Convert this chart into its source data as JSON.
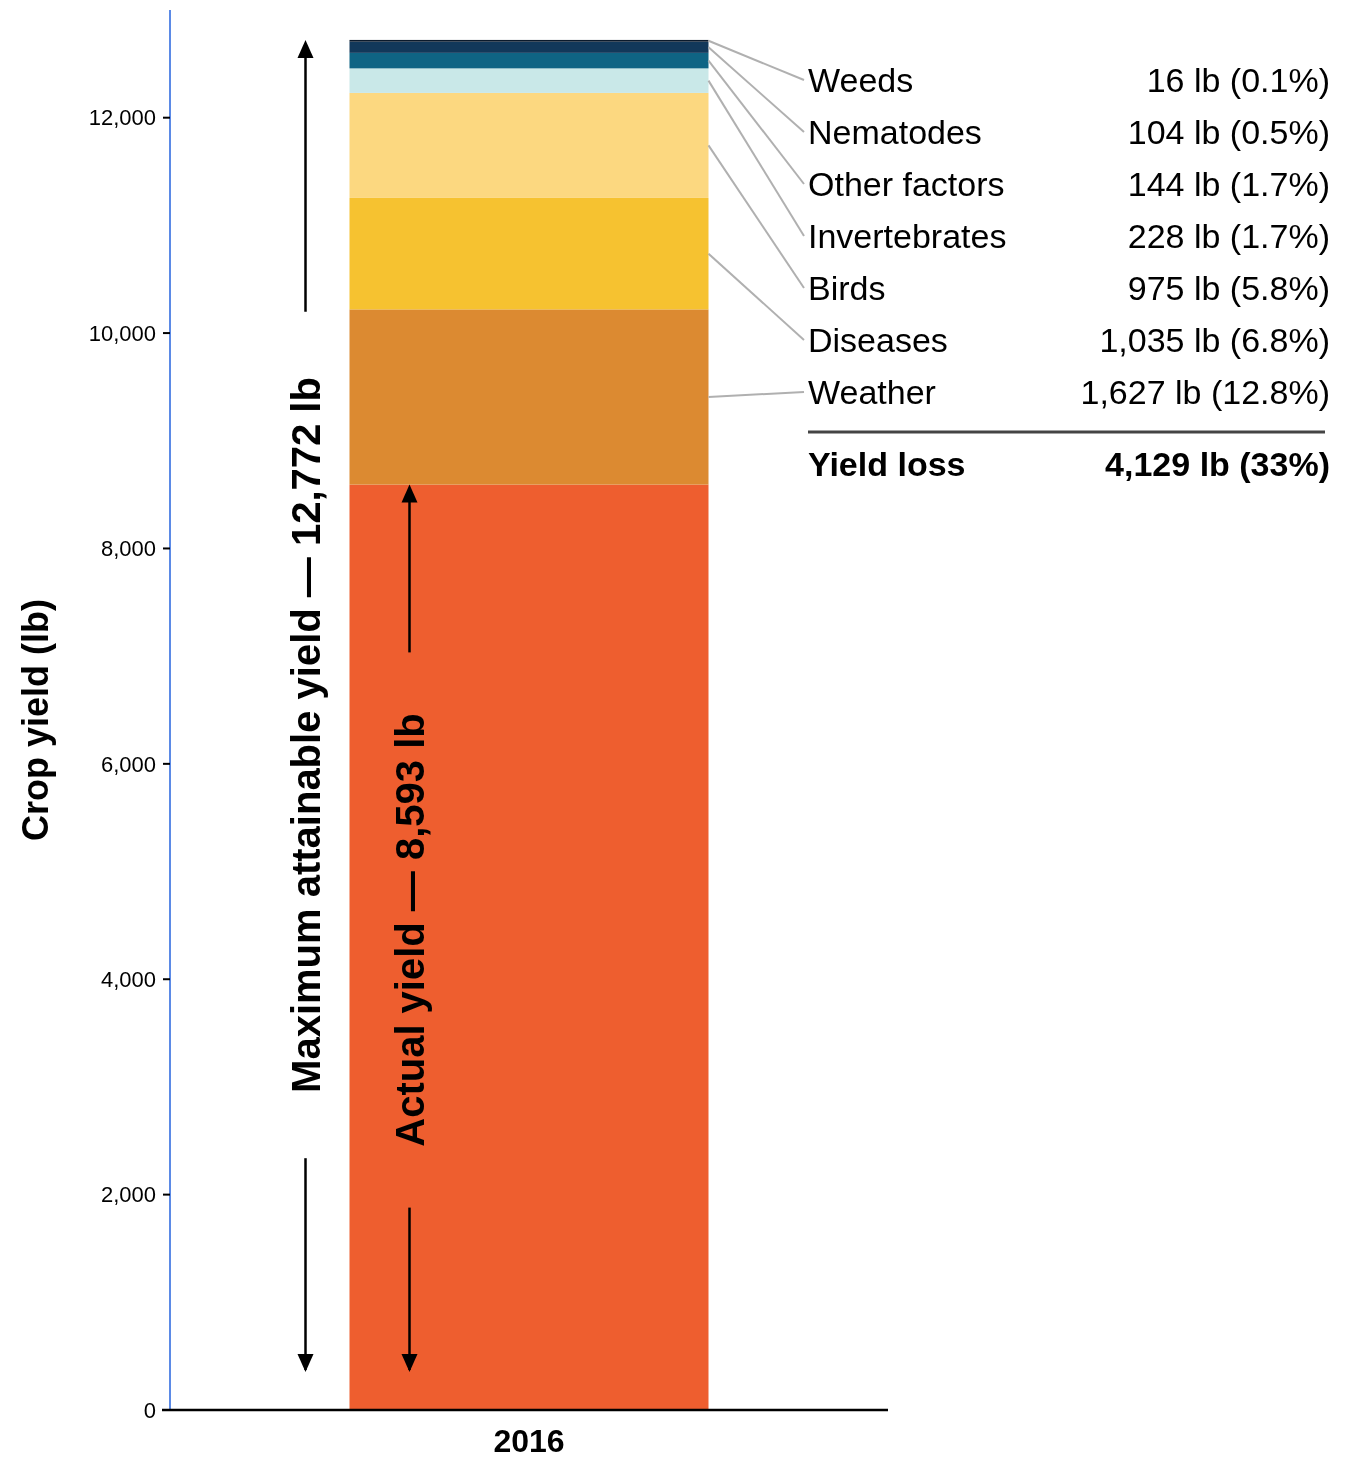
{
  "chart_data": {
    "type": "bar",
    "stacked": true,
    "categories": [
      "2016"
    ],
    "ylabel": "Crop yield (lb)",
    "ylim": [
      0,
      13000
    ],
    "yticks": [
      {
        "value": 0,
        "label": "0"
      },
      {
        "value": 2000,
        "label": "2,000"
      },
      {
        "value": 4000,
        "label": "4,000"
      },
      {
        "value": 6000,
        "label": "6,000"
      },
      {
        "value": 8000,
        "label": "8,000"
      },
      {
        "value": 10000,
        "label": "10,000"
      },
      {
        "value": 12000,
        "label": "12,000"
      }
    ],
    "grid": false,
    "legend": "right",
    "series": [
      {
        "color": "#ee5e2f",
        "values": [
          8593
        ]
      },
      {
        "name": "Weather",
        "color": "#dc8a31",
        "values": [
          1627
        ]
      },
      {
        "name": "Diseases",
        "color": "#f6c230",
        "values": [
          1035
        ]
      },
      {
        "name": "Birds",
        "color": "#fcd880",
        "values": [
          975
        ]
      },
      {
        "name": "Invertebrates",
        "color": "#c9e8e8",
        "values": [
          228
        ]
      },
      {
        "name": "Other factors",
        "color": "#0f6484",
        "values": [
          144
        ]
      },
      {
        "name": "Nematodes",
        "color": "#12385a",
        "values": [
          104
        ]
      },
      {
        "name": "Weeds",
        "color": "#0b1a2c",
        "values": [
          16
        ]
      }
    ],
    "annotations": [
      "Maximum attainable yield — 12,772 lb",
      "Actual yield — 8,593 lb",
      "Yield loss",
      "4,129 lb (33%)",
      "16 lb (0.1%)",
      "104 lb (0.5%)",
      "144 lb (1.7%)",
      "228 lb (1.7%)",
      "975 lb (5.8%)",
      "1,035 lb (6.8%)",
      "1,627 lb (12.8%)"
    ]
  }
}
